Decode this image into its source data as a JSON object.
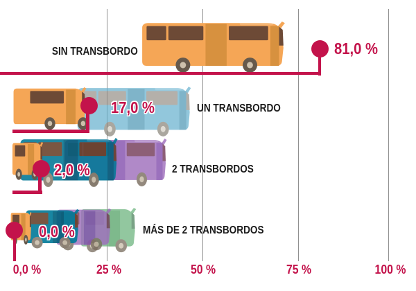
{
  "chart_data": {
    "type": "bar",
    "orientation": "horizontal",
    "categories": [
      "SIN TRANSBORDO",
      "UN TRANSBORDO",
      "2 TRANSBORDOS",
      "MÁS DE 2 TRANSBORDOS"
    ],
    "values": [
      81.0,
      17.0,
      2.0,
      0.0
    ],
    "value_labels": [
      "81,0 %",
      "17,0 %",
      "2,0 %",
      "0,0 %"
    ],
    "x_tick_labels": [
      "0,0 %",
      "25 %",
      "50 %",
      "75 %",
      "100 %"
    ],
    "x_tick_values": [
      0,
      25,
      50,
      75,
      100
    ],
    "xlim": [
      0,
      100
    ],
    "grid": "vertical",
    "legend": false
  },
  "rows": [
    {
      "label": "SIN TRANSBORDO",
      "value_label": "81,0 %",
      "value": 81.0,
      "buses": [
        "orange"
      ]
    },
    {
      "label": "UN TRANSBORDO",
      "value_label": "17,0 %",
      "value": 17.0,
      "buses": [
        "orange",
        "blue"
      ]
    },
    {
      "label": "2 TRANSBORDOS",
      "value_label": "2,0 %",
      "value": 2.0,
      "buses": [
        "orange",
        "teal",
        "purple"
      ]
    },
    {
      "label": "MÁS DE 2 TRANSBORDOS",
      "value_label": "0,0 %",
      "value": 0.0,
      "buses": [
        "orange",
        "teal",
        "purple",
        "green"
      ]
    }
  ],
  "colors": {
    "marker": "#C3134B",
    "axis_text": "#C3134B",
    "label_text": "#1A1A1A",
    "gridline": "#909090",
    "bus_palette": {
      "orange": {
        "body": "#F5A656",
        "window": "#6D4A36",
        "trim": "#D7913F",
        "wheel": "#66594C",
        "hub": "#CDC0AC"
      },
      "blue": {
        "body": "#92C8DC",
        "window": "#B4B0AB",
        "trim": "#80B5C9",
        "wheel": "#ABA79F",
        "hub": "#E0DCD4"
      },
      "teal": {
        "body": "#1987A3",
        "window": "#7A5743",
        "trim": "#0E7089",
        "wheel": "#948A7E",
        "hub": "#CFC5B4"
      },
      "purple": {
        "body": "#B18AC9",
        "window": "#8E6078",
        "trim": "#9C72BE",
        "wheel": "#948A7E",
        "hub": "#CFC5B4"
      },
      "green": {
        "body": "#93C8A0",
        "window": "#7BA387",
        "trim": "#7FBA8D",
        "wheel": "#9A9186",
        "hub": "#D6CDBE"
      }
    }
  }
}
